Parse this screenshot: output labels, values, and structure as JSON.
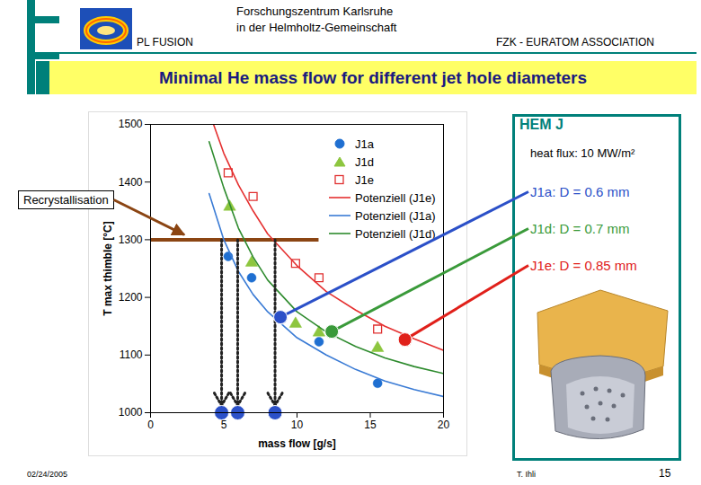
{
  "page": {
    "header": {
      "left": "PL FUSION",
      "center": [
        "Forschungszentrum Karlsruhe",
        "in der Helmholtz-Gemeinschaft"
      ],
      "right": "FZK - EURATOM ASSOCIATION"
    },
    "title": "Minimal He mass flow for different jet hole diameters",
    "panel": {
      "title": "HEM J",
      "subtitle": "heat flux: 10 MW/m²"
    },
    "footer": {
      "date": "02/24/2005",
      "author": "T. Ihli",
      "page": "15"
    }
  },
  "chart_data": {
    "type": "scatter",
    "xlabel": "mass flow [g/s]",
    "ylabel": "T max thimble [°C]",
    "xlim": [
      0,
      20
    ],
    "ylim": [
      1000,
      1500
    ],
    "xticks": [
      0,
      5,
      10,
      15,
      20
    ],
    "yticks": [
      1000,
      1100,
      1200,
      1300,
      1400,
      1500
    ],
    "grid": false,
    "legend": "top-right",
    "series": [
      {
        "name": "J1a",
        "type": "scatter",
        "marker": "circle",
        "color": "#1f6fd1",
        "x": [
          5.3,
          6.9,
          11.5,
          15.5
        ],
        "values": [
          1271,
          1234,
          1123,
          1051
        ]
      },
      {
        "name": "J1d",
        "type": "scatter",
        "marker": "triangle",
        "color": "#8dc63f",
        "x": [
          5.4,
          6.9,
          9.9,
          11.5,
          15.5
        ],
        "values": [
          1357,
          1260,
          1154,
          1139,
          1112
        ]
      },
      {
        "name": "J1e",
        "type": "scatter",
        "marker": "square-open",
        "color": "#e03030",
        "x": [
          5.3,
          7.0,
          9.9,
          11.5,
          15.5
        ],
        "values": [
          1416,
          1375,
          1259,
          1234,
          1145
        ]
      },
      {
        "name": "Potenziell (J1e)",
        "type": "line",
        "line_style": "solid",
        "color": "#e53030",
        "x": [
          4.3,
          5,
          6,
          7,
          8,
          10,
          12,
          14,
          16,
          18,
          20
        ],
        "values": [
          1500,
          1450,
          1395,
          1350,
          1310,
          1255,
          1210,
          1178,
          1150,
          1128,
          1108
        ]
      },
      {
        "name": "Potenziell (J1a)",
        "type": "line",
        "line_style": "solid",
        "color": "#3a7bd5",
        "x": [
          4,
          5,
          6,
          7,
          8,
          10,
          12,
          14,
          16,
          18,
          20
        ],
        "values": [
          1380,
          1300,
          1245,
          1205,
          1175,
          1130,
          1100,
          1075,
          1055,
          1040,
          1028
        ]
      },
      {
        "name": "Potenziell (J1d)",
        "type": "line",
        "line_style": "solid",
        "color": "#2e8b2e",
        "x": [
          4,
          5,
          6,
          7,
          8,
          10,
          12,
          14,
          16,
          18,
          20
        ],
        "values": [
          1470,
          1390,
          1320,
          1270,
          1230,
          1175,
          1140,
          1115,
          1095,
          1080,
          1068
        ]
      }
    ],
    "threshold": {
      "label": "Recrystallisation",
      "value": 1300,
      "x_end": 11.5,
      "color": "#8b4513"
    },
    "highlights": [
      {
        "x": 8.9,
        "y": 1165,
        "color": "#2b50c8",
        "label": "J1a: D = 0.6 mm"
      },
      {
        "x": 12.4,
        "y": 1140,
        "color": "#3a9a3a",
        "label": "J1d: D = 0.7 mm"
      },
      {
        "x": 17.4,
        "y": 1126,
        "color": "#e0201a",
        "label": "J1e: D = 0.85 mm"
      }
    ],
    "minimum_flows": {
      "x": [
        4.85,
        5.95,
        8.5
      ],
      "color": "#2b50c8"
    }
  }
}
